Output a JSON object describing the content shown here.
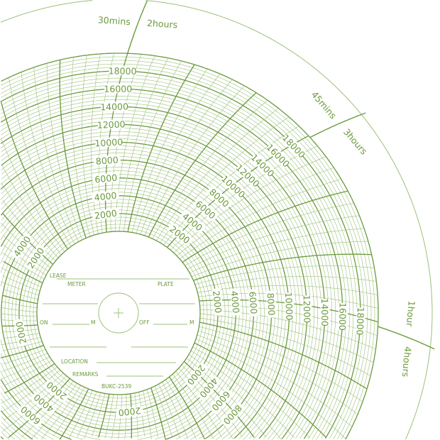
{
  "colors": {
    "ink": "#6b9a3c",
    "ink_light": "#9cc07a",
    "paper": "#ffffff"
  },
  "scale": {
    "min": 0,
    "max": 20000,
    "label_values": [
      "2000",
      "4000",
      "6000",
      "8000",
      "10000",
      "12000",
      "14000",
      "16000",
      "18000"
    ]
  },
  "time_labels": [
    {
      "inner": "30mins",
      "outer": "2hours"
    },
    {
      "inner": "45mins",
      "outer": "3hours"
    },
    {
      "inner": "1hour",
      "outer": "4hours"
    }
  ],
  "hub": {
    "lease": "LEASE",
    "meter": "METER",
    "plate": "PLATE",
    "on": "ON",
    "off": "OFF",
    "m": "M",
    "location": "LOCATION",
    "remarks": "REMARKS",
    "code": "BUKC-2539",
    "center_icon": "crosshair-plus-icon"
  }
}
